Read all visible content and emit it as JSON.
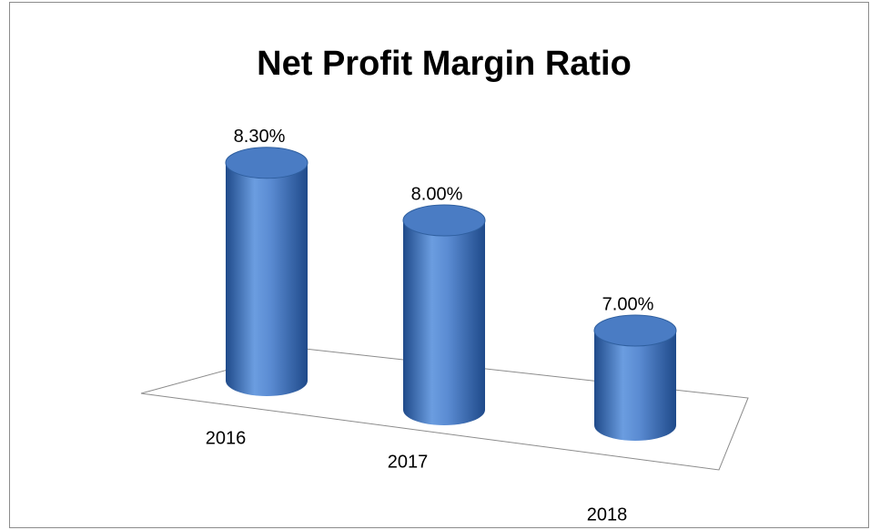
{
  "chart_data": {
    "type": "cylinder",
    "title": "Net Profit Margin Ratio",
    "categories": [
      "2016",
      "2017",
      "2018"
    ],
    "values": [
      8.3,
      8.0,
      7.0
    ],
    "value_labels": [
      "8.30%",
      "8.00%",
      "7.00%"
    ],
    "color": "#4a7cc4",
    "ylim": [
      6,
      8.5
    ]
  }
}
